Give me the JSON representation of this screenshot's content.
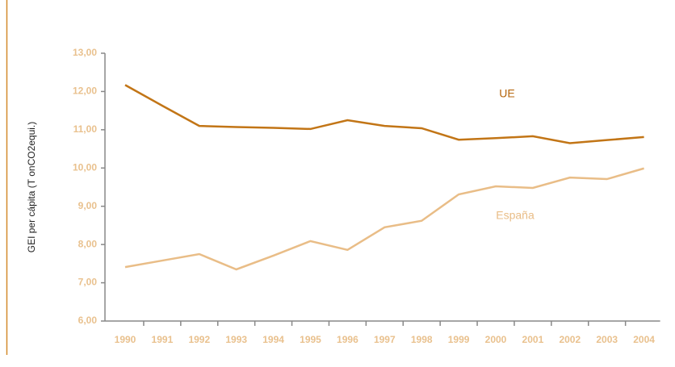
{
  "chart_data": {
    "type": "line",
    "y_label": "GEI per cápita (T onCO2equi.)",
    "categories": [
      "1990",
      "1991",
      "1992",
      "1993",
      "1994",
      "1995",
      "1996",
      "1997",
      "1998",
      "1999",
      "2000",
      "2001",
      "2002",
      "2003",
      "2004"
    ],
    "series": [
      {
        "name": "UE",
        "color": "#c27516",
        "values": [
          12.17,
          11.63,
          11.1,
          11.07,
          11.05,
          11.02,
          11.25,
          11.1,
          11.04,
          10.74,
          10.78,
          10.83,
          10.65,
          10.73,
          10.81
        ]
      },
      {
        "name": "España",
        "color": "#e9bd87",
        "values": [
          7.41,
          7.58,
          7.75,
          7.35,
          7.71,
          8.09,
          7.86,
          8.45,
          8.62,
          9.31,
          9.52,
          9.48,
          9.75,
          9.71,
          9.99
        ]
      }
    ],
    "ylim": [
      6,
      13
    ],
    "yticks": [
      {
        "value": 6,
        "label": "6,00"
      },
      {
        "value": 7,
        "label": "7,00"
      },
      {
        "value": 8,
        "label": "8,00"
      },
      {
        "value": 9,
        "label": "9,00"
      },
      {
        "value": 10,
        "label": "10,00"
      },
      {
        "value": 11,
        "label": "11,00"
      },
      {
        "value": 12,
        "label": "12,00"
      },
      {
        "value": 13,
        "label": "13,00"
      }
    ]
  }
}
